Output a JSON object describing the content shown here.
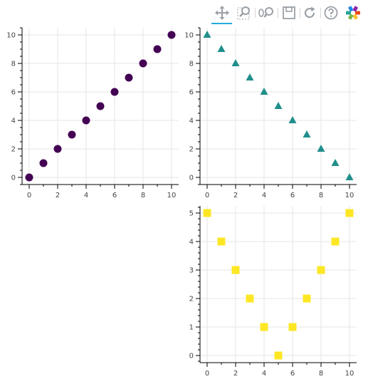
{
  "toolbar": {
    "tools": [
      {
        "name": "pan-tool",
        "icon": "pan-icon",
        "active": true
      },
      {
        "name": "box-zoom-tool",
        "icon": "box-zoom-icon",
        "active": false
      },
      {
        "name": "wheel-zoom-tool",
        "icon": "wheel-zoom-icon",
        "active": false
      },
      {
        "name": "save-tool",
        "icon": "save-icon",
        "active": false
      },
      {
        "name": "reset-tool",
        "icon": "reset-icon",
        "active": false
      },
      {
        "name": "help-tool",
        "icon": "help-icon",
        "active": false
      },
      {
        "name": "bokeh-logo",
        "icon": "bokeh-logo-icon",
        "active": false
      }
    ],
    "active_color": "#26aae1",
    "icon_color": "#9aa0a6"
  },
  "chart_data": [
    {
      "type": "scatter",
      "marker": "circle",
      "color": "#440154",
      "x": [
        0,
        1,
        2,
        3,
        4,
        5,
        6,
        7,
        8,
        9,
        10
      ],
      "y": [
        0,
        1,
        2,
        3,
        4,
        5,
        6,
        7,
        8,
        9,
        10
      ],
      "xlim": [
        -0.5,
        10.5
      ],
      "ylim": [
        -0.5,
        10.5
      ],
      "xticks": [
        0,
        2,
        4,
        6,
        8,
        10
      ],
      "yticks": [
        0,
        2,
        4,
        6,
        8,
        10
      ],
      "grid": true
    },
    {
      "type": "scatter",
      "marker": "triangle",
      "color": "#208f8c",
      "x": [
        0,
        1,
        2,
        3,
        4,
        5,
        6,
        7,
        8,
        9,
        10
      ],
      "y": [
        10,
        9,
        8,
        7,
        6,
        5,
        4,
        3,
        2,
        1,
        0
      ],
      "xlim": [
        -0.5,
        10.5
      ],
      "ylim": [
        -0.5,
        10.5
      ],
      "xticks": [
        0,
        2,
        4,
        6,
        8,
        10
      ],
      "yticks": [
        0,
        2,
        4,
        6,
        8,
        10
      ],
      "grid": true
    },
    {
      "type": "scatter",
      "marker": "square",
      "color": "#fde724",
      "x": [
        0,
        1,
        2,
        3,
        4,
        5,
        6,
        7,
        8,
        9,
        10
      ],
      "y": [
        5,
        4,
        3,
        2,
        1,
        0,
        1,
        2,
        3,
        4,
        5
      ],
      "xlim": [
        -0.5,
        10.5
      ],
      "ylim": [
        -0.25,
        5.25
      ],
      "xticks": [
        0,
        2,
        4,
        6,
        8,
        10
      ],
      "yticks": [
        0,
        1,
        2,
        3,
        4,
        5
      ],
      "grid": true
    }
  ]
}
